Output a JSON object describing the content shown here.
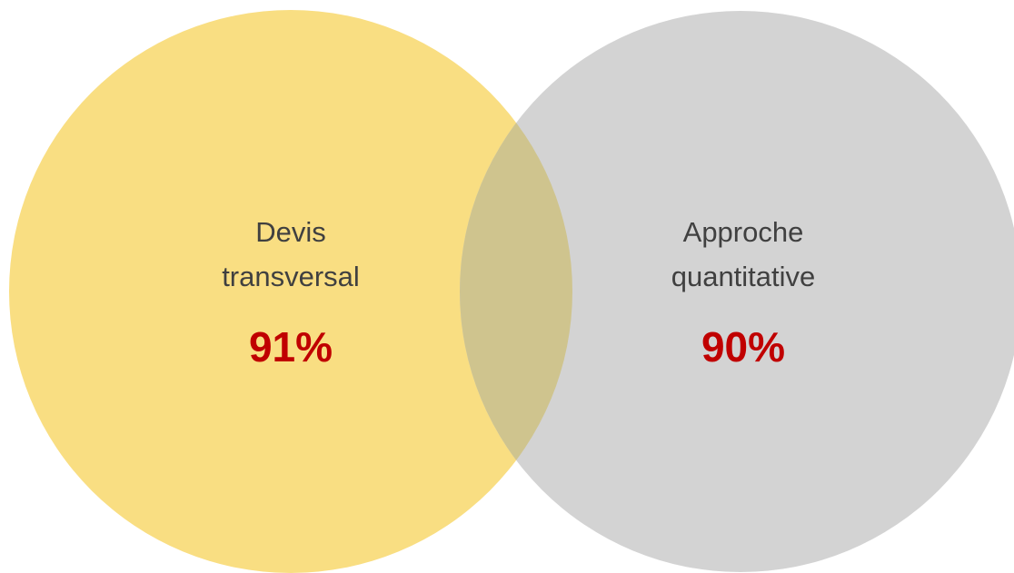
{
  "nodes": [
    {
      "label_lines": [
        "Devis",
        "transversal"
      ],
      "value": "91%"
    },
    {
      "label_lines": [
        "Approche",
        "quantitative"
      ],
      "value": "90%"
    }
  ]
}
